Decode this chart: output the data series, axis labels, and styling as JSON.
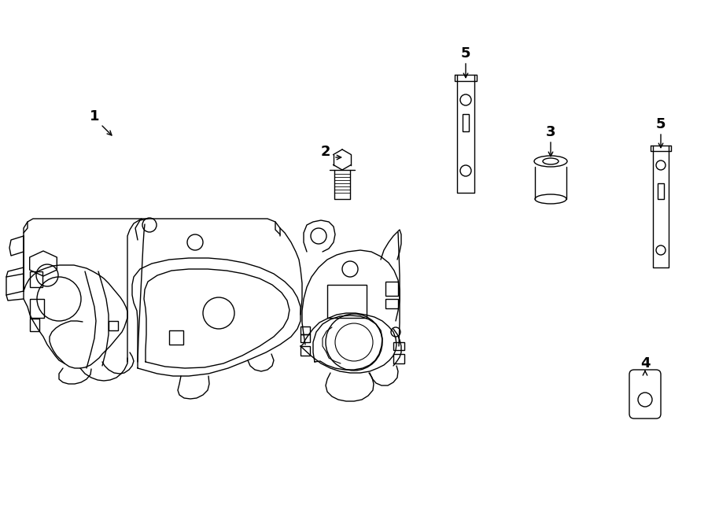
{
  "bg_color": "#ffffff",
  "line_color": "#000000",
  "lw": 1.0,
  "fig_width": 9.0,
  "fig_height": 6.61,
  "dpi": 100,
  "label_fontsize": 13,
  "label_fontweight": "bold"
}
